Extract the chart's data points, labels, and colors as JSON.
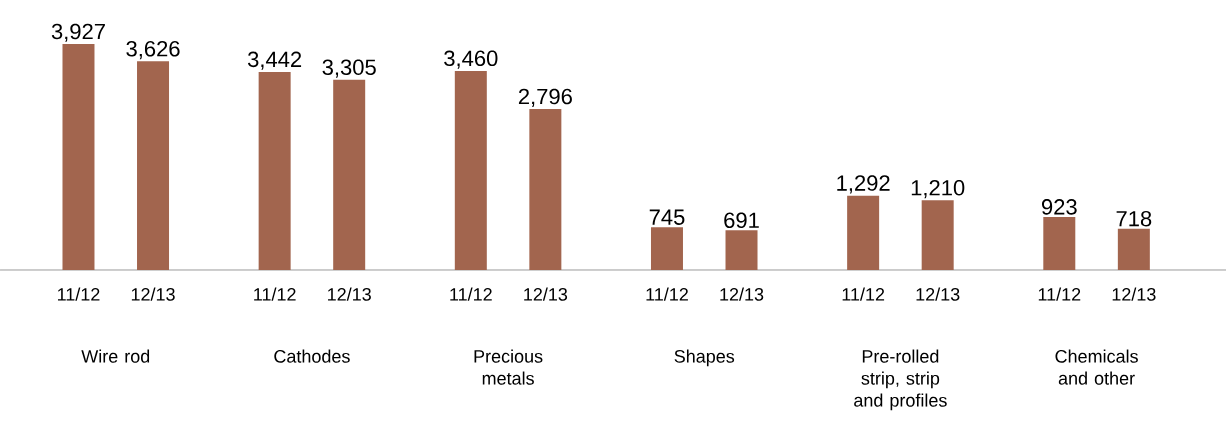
{
  "chart_data": {
    "type": "bar",
    "categories": [
      "Wire rod",
      "Cathodes",
      "Precious metals",
      "Shapes",
      "Pre-rolled strip, strip and profiles",
      "Chemicals and other"
    ],
    "series": [
      {
        "name": "11/12",
        "color": "#a2654e",
        "values": [
          3927,
          3442,
          3460,
          745,
          1292,
          923
        ],
        "value_labels": [
          "3,927",
          "3,442",
          "3,460",
          "745",
          "1,292",
          "923"
        ]
      },
      {
        "name": "12/13",
        "color": "#a2654e",
        "values": [
          3626,
          3305,
          2796,
          691,
          1210,
          718
        ],
        "value_labels": [
          "3,626",
          "3,305",
          "2,796",
          "691",
          "1,210",
          "718"
        ]
      }
    ]
  }
}
